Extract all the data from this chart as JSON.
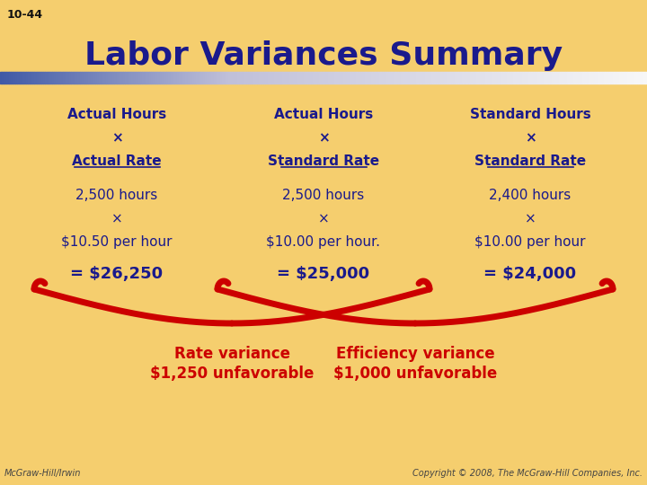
{
  "title": "Labor Variances Summary",
  "slide_num": "10-44",
  "background_color": "#F5CE6E",
  "title_color": "#1a1a8c",
  "title_fontsize": 26,
  "columns": [
    {
      "header_line1": "Actual Hours",
      "header_line2": "×",
      "header_line3": "Actual Rate",
      "detail_line1": "2,500 hours",
      "detail_line2": "×",
      "detail_line3": "$10.50 per hour",
      "result": "= $26,250"
    },
    {
      "header_line1": "Actual Hours",
      "header_line2": "×",
      "header_line3": "Standard Rate",
      "detail_line1": "2,500 hours",
      "detail_line2": "×",
      "detail_line3": "$10.00 per hour.",
      "result": "= $25,000"
    },
    {
      "header_line1": "Standard Hours",
      "header_line2": "×",
      "header_line3": "Standard Rate",
      "detail_line1": "2,400 hours",
      "detail_line2": "×",
      "detail_line3": "$10.00 per hour",
      "result": "= $24,000"
    }
  ],
  "footer_left": "McGraw-Hill/Irwin",
  "footer_right": "Copyright © 2008, The McGraw-Hill Companies, Inc.",
  "text_dark_blue": "#1a1a8c",
  "text_red": "#cc0000"
}
